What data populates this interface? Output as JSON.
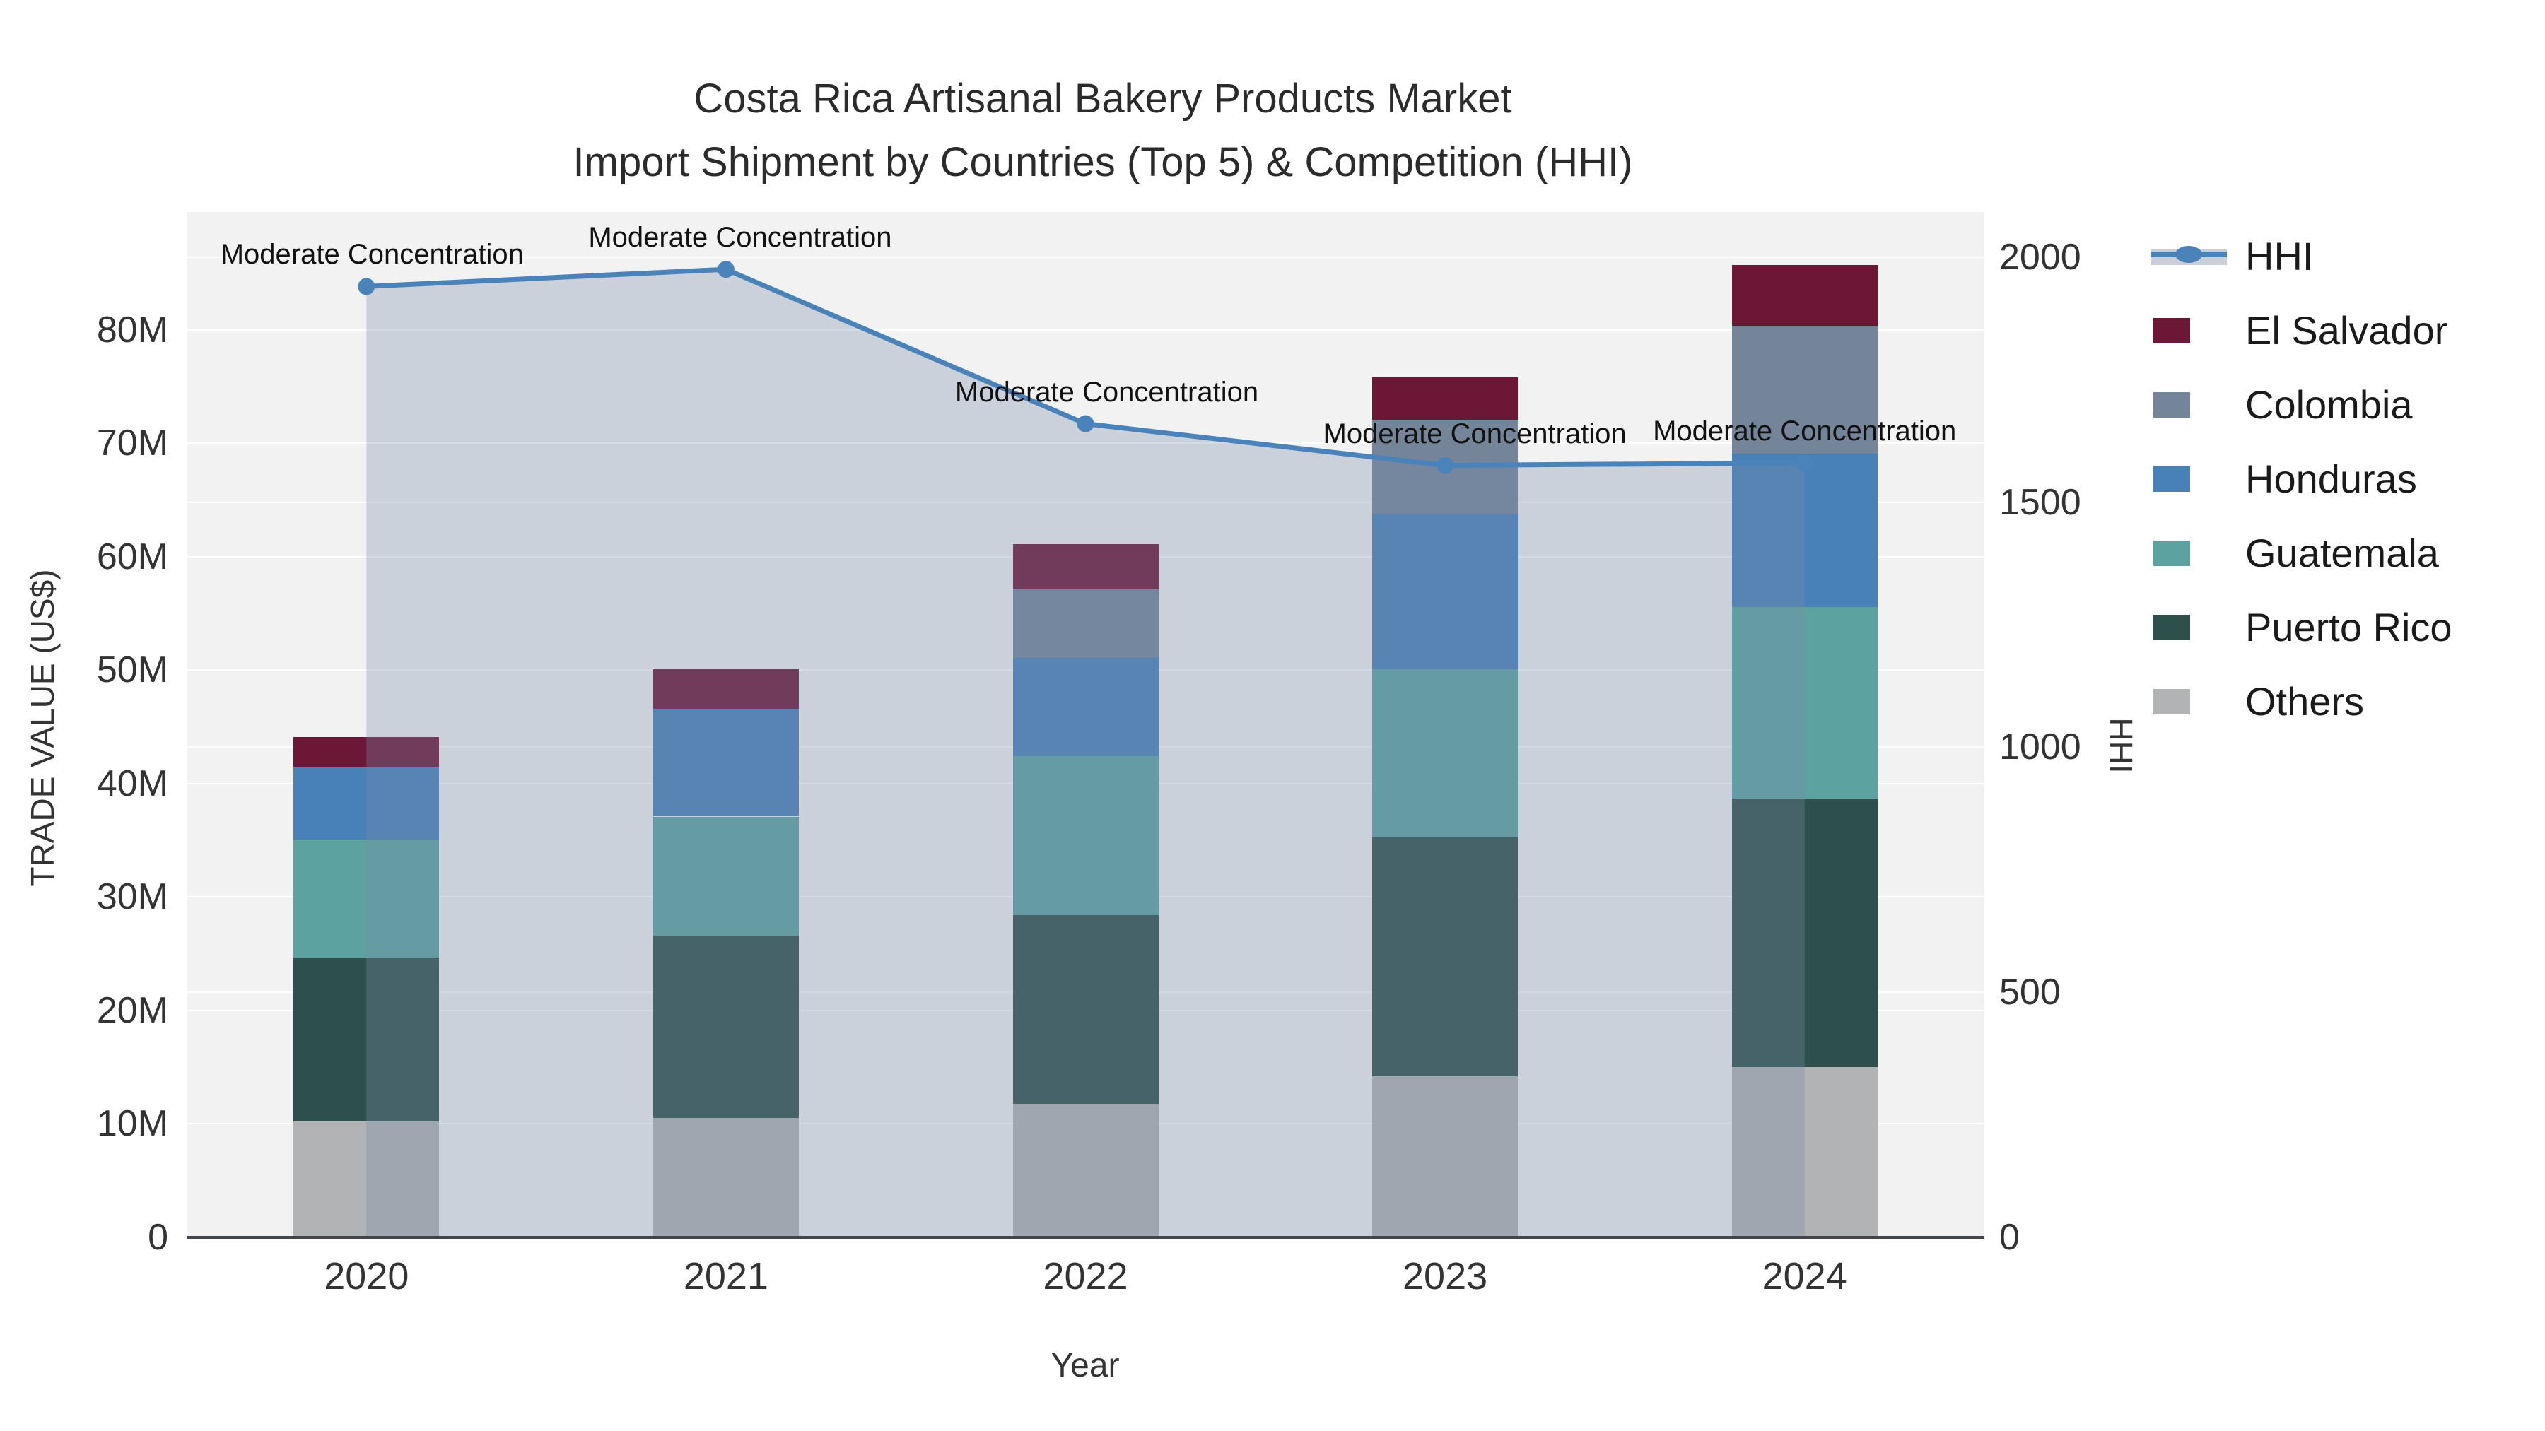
{
  "title": {
    "line1": "Costa Rica Artisanal Bakery Products Market",
    "line2": "Import Shipment by Countries (Top 5) & Competition (HHI)"
  },
  "axes": {
    "x_title": "Year",
    "y_left_title": "TRADE VALUE (US$)",
    "y_right_title": "HHI",
    "y_left_ticks": [
      "0",
      "10M",
      "20M",
      "30M",
      "40M",
      "50M",
      "60M",
      "70M",
      "80M"
    ],
    "y_left_tick_values": [
      0,
      10,
      20,
      30,
      40,
      50,
      60,
      70,
      80
    ],
    "y_right_ticks": [
      "0",
      "500",
      "1000",
      "1500",
      "2000"
    ],
    "y_right_tick_values": [
      0,
      500,
      1000,
      1500,
      2000
    ]
  },
  "legend": {
    "items": [
      {
        "label": "HHI",
        "type": "line",
        "color": "#4a83ba"
      },
      {
        "label": "El Salvador",
        "type": "swatch",
        "color": "#6d1737"
      },
      {
        "label": "Colombia",
        "type": "swatch",
        "color": "#74859a"
      },
      {
        "label": "Honduras",
        "type": "swatch",
        "color": "#4781b7"
      },
      {
        "label": "Guatemala",
        "type": "swatch",
        "color": "#5ca2a1"
      },
      {
        "label": "Puerto Rico",
        "type": "swatch",
        "color": "#2e504d"
      },
      {
        "label": "Others",
        "type": "swatch",
        "color": "#b2b3b4"
      }
    ]
  },
  "chart_data": {
    "type": "bar+line",
    "title": "Costa Rica Artisanal Bakery Products Market — Import Shipment by Countries (Top 5) & Competition (HHI)",
    "categories": [
      "2020",
      "2021",
      "2022",
      "2023",
      "2024"
    ],
    "bar_value_unit": "million US$",
    "stack_order_bottom_to_top": [
      "Others",
      "Puerto Rico",
      "Guatemala",
      "Honduras",
      "Colombia",
      "El Salvador"
    ],
    "series": [
      {
        "name": "Others",
        "color": "#b2b3b4",
        "values": [
          10.2,
          10.5,
          11.8,
          14.2,
          15.0
        ]
      },
      {
        "name": "Puerto Rico",
        "color": "#2e504d",
        "values": [
          14.5,
          16.1,
          16.6,
          21.1,
          23.7
        ]
      },
      {
        "name": "Guatemala",
        "color": "#5ca2a1",
        "values": [
          10.4,
          10.5,
          14.0,
          14.8,
          16.9
        ]
      },
      {
        "name": "Honduras",
        "color": "#4781b7",
        "values": [
          6.4,
          9.5,
          8.7,
          13.7,
          13.5
        ]
      },
      {
        "name": "Colombia",
        "color": "#74859a",
        "values": [
          0,
          0,
          6.0,
          8.3,
          11.2
        ]
      },
      {
        "name": "El Salvador",
        "color": "#6d1737",
        "values": [
          2.6,
          3.5,
          4.0,
          3.7,
          5.4
        ]
      }
    ],
    "bar_totals": [
      44.1,
      50.1,
      61.1,
      75.8,
      85.7
    ],
    "line_series": {
      "name": "HHI",
      "color": "#4a83ba",
      "fill_color": "rgba(120,140,168,0.32)",
      "values": [
        1940,
        1975,
        1660,
        1575,
        1580
      ]
    },
    "annotations": {
      "text": "Moderate Concentration",
      "dx": [
        8,
        20,
        30,
        42,
        0
      ],
      "gap_above_point": 22
    },
    "xlabel": "Year",
    "ylabel_left": "TRADE VALUE (US$)",
    "ylabel_right": "HHI",
    "ylim_left": [
      0,
      90.4
    ],
    "ylim_right": [
      0,
      2092
    ],
    "grid": true,
    "legend_position": "right",
    "plot_bg": "#f2f2f3"
  }
}
